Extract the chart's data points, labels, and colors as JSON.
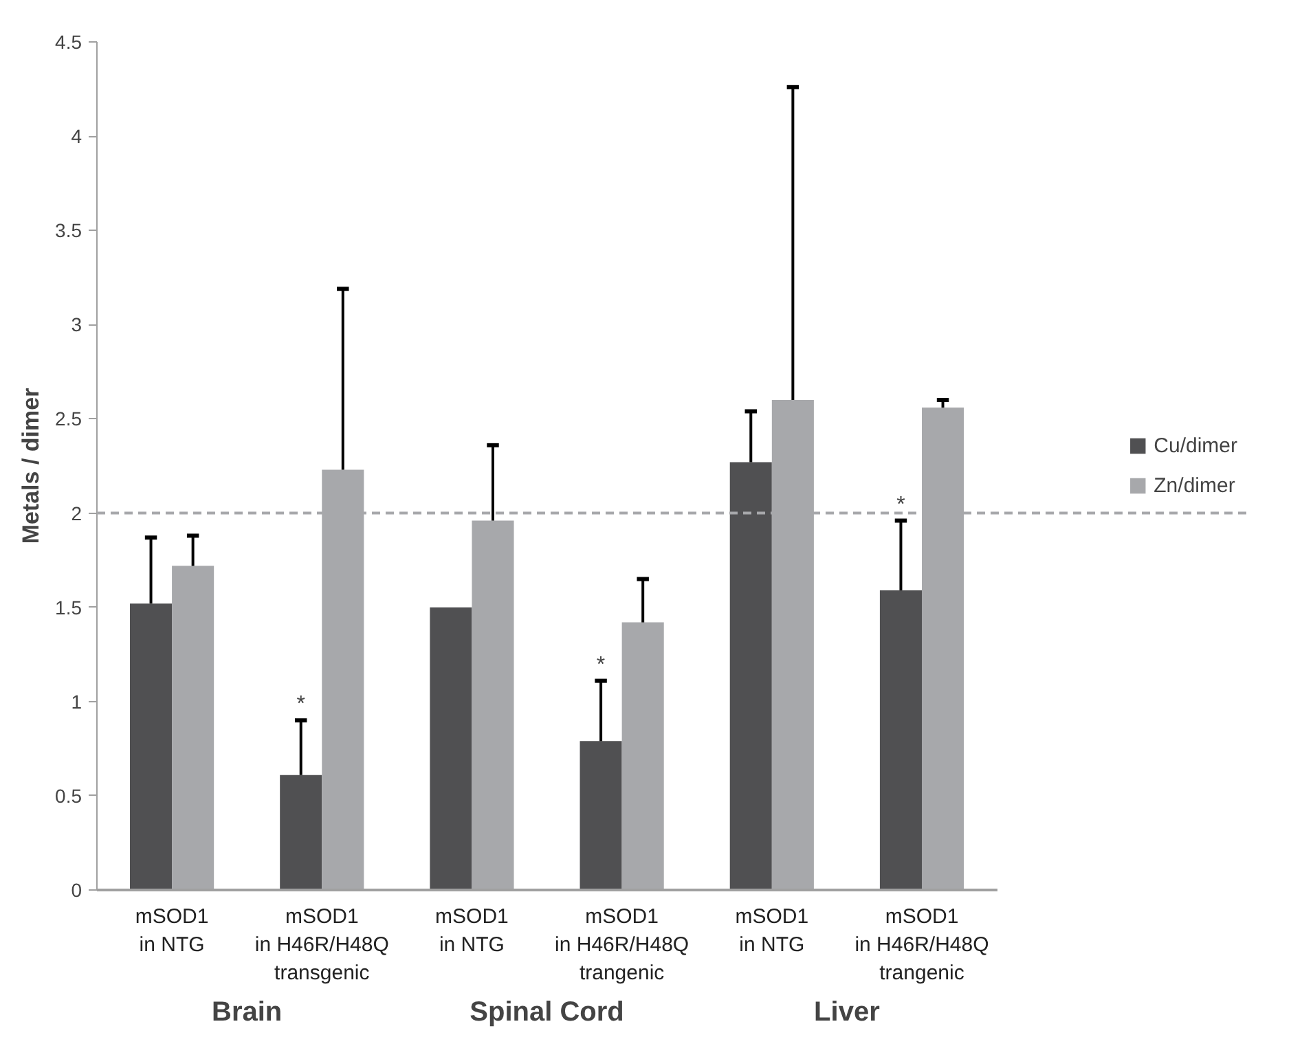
{
  "chart_data": {
    "type": "bar",
    "ylabel": "Metals / dimer",
    "categories": [
      "mSOD1\nin NTG",
      "mSOD1\nin H46R/H48Q\ntransgenic",
      "mSOD1\nin NTG",
      "mSOD1\nin H46R/H48Q\ntrangenic",
      "mSOD1\nin NTG",
      "mSOD1\nin H46R/H48Q\ntrangenic"
    ],
    "series": [
      {
        "name": "Cu/dimer",
        "color": "#505052",
        "values": [
          1.52,
          0.61,
          1.5,
          0.79,
          2.27,
          1.59
        ],
        "errors": [
          [
            1.52,
            1.87
          ],
          [
            0.61,
            0.9
          ],
          null,
          [
            0.79,
            1.11
          ],
          [
            2.27,
            2.54
          ],
          [
            1.59,
            1.96
          ]
        ]
      },
      {
        "name": "Zn/dimer",
        "color": "#a7a8ab",
        "values": [
          1.72,
          2.23,
          1.96,
          1.42,
          2.6,
          2.56
        ],
        "errors": [
          [
            1.72,
            1.88
          ],
          [
            2.23,
            3.19
          ],
          [
            1.96,
            2.36
          ],
          [
            1.42,
            1.65
          ],
          [
            2.6,
            4.26
          ],
          [
            2.56,
            2.6
          ]
        ]
      }
    ],
    "ylim": [
      0,
      4.5
    ],
    "yticks": [
      0,
      {
        "value": 0.5,
        "label": "0.5"
      },
      1,
      {
        "value": 1.5,
        "label": "1.5"
      },
      2,
      {
        "value": 2.5,
        "label": "2.5"
      },
      3,
      {
        "value": 3.5,
        "label": "3.5"
      },
      4,
      {
        "value": 4.5,
        "label": "4.5"
      }
    ],
    "ref_lines": [
      {
        "axis": "y",
        "value": 2,
        "color": "#a7a8ab",
        "line_style": "dashed"
      }
    ],
    "annotations": [
      "Brain",
      "Spinal Cord",
      "Liver",
      {
        "text": "*",
        "x": "mSOD1\nin H46R/H48Q\ntransgenic",
        "y": 0.9
      },
      {
        "text": "*",
        "x": "mSOD1\nin H46R/H48Q\ntrangenic",
        "y": 1.11
      },
      "*"
    ],
    "grid": false,
    "legend": "right"
  }
}
